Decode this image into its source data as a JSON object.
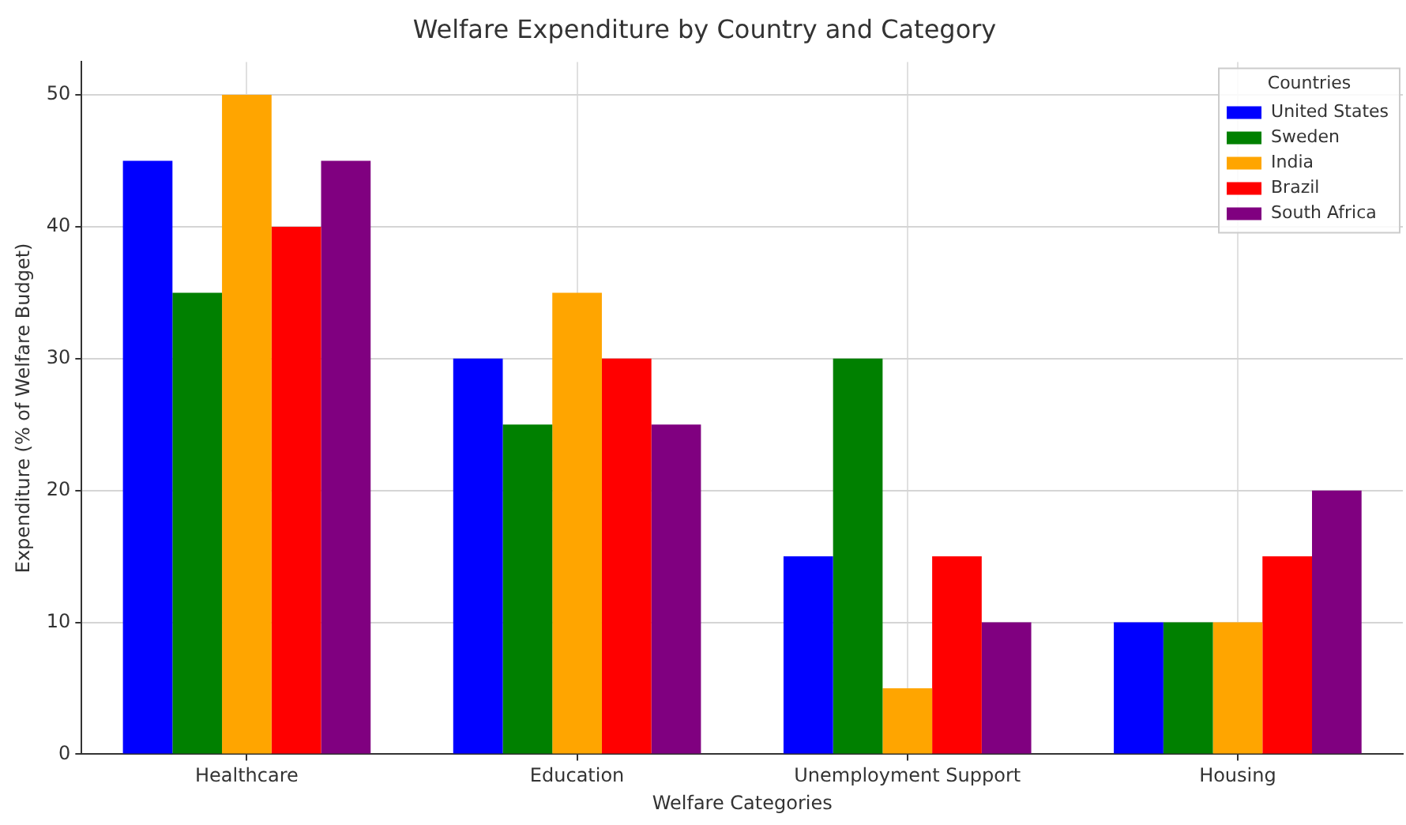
{
  "chart_data": {
    "type": "bar",
    "title": "Welfare Expenditure by Country and Category",
    "xlabel": "Welfare Categories",
    "ylabel": "Expenditure (% of Welfare Budget)",
    "legend_title": "Countries",
    "categories": [
      "Healthcare",
      "Education",
      "Unemployment Support",
      "Housing"
    ],
    "series": [
      {
        "name": "United States",
        "color": "#0000ff",
        "values": [
          45,
          30,
          15,
          10
        ]
      },
      {
        "name": "Sweden",
        "color": "#008000",
        "values": [
          35,
          25,
          30,
          10
        ]
      },
      {
        "name": "India",
        "color": "#ffa500",
        "values": [
          50,
          35,
          5,
          10
        ]
      },
      {
        "name": "Brazil",
        "color": "#ff0000",
        "values": [
          40,
          30,
          15,
          15
        ]
      },
      {
        "name": "South Africa",
        "color": "#800080",
        "values": [
          45,
          25,
          10,
          20
        ]
      }
    ],
    "ylim": [
      0,
      52.5
    ],
    "yticks": [
      0,
      10,
      20,
      30,
      40,
      50
    ],
    "grid": true,
    "legend": "top right"
  }
}
